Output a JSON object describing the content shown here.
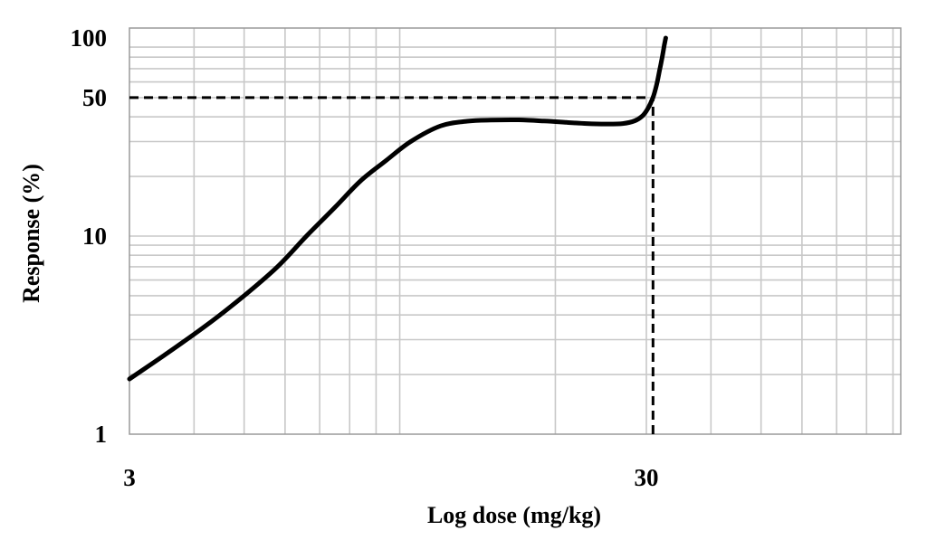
{
  "chart_data": {
    "type": "line",
    "title": "",
    "xlabel": "Log dose (mg/kg)",
    "ylabel": "Response (%)",
    "x_scale": "log",
    "y_scale": "log",
    "xlim": [
      3,
      300
    ],
    "ylim": [
      1,
      100
    ],
    "x_ticks": [
      3,
      30
    ],
    "x_tick_labels": [
      "3",
      "30"
    ],
    "y_ticks": [
      1,
      10,
      50,
      100
    ],
    "y_tick_labels": [
      "1",
      "10",
      "50",
      "100"
    ],
    "grid": true,
    "legend": "none",
    "colors": {
      "line": "#000000",
      "grid": "#c8c8c8",
      "axis": "#7a7a7a"
    },
    "series": [
      {
        "x": [
          3.0,
          3.5,
          4.2,
          5.0,
          5.8,
          6.6,
          7.5,
          8.4,
          9.4,
          10.5,
          12.0,
          13.5,
          15.0,
          17.0,
          19.0,
          21.0,
          23.0,
          25.0,
          27.0,
          28.5,
          29.5,
          30.2,
          30.9,
          31.4,
          31.8,
          32.2,
          32.5,
          32.7
        ],
        "y": [
          1.9,
          2.5,
          3.5,
          5.0,
          7.0,
          10.0,
          14.0,
          19.0,
          24.0,
          30.0,
          36.0,
          38.0,
          38.5,
          38.6,
          38.1,
          37.5,
          37.0,
          36.8,
          37.0,
          38.2,
          40.5,
          44.0,
          50.0,
          58.0,
          68.0,
          80.0,
          92.0,
          100.0
        ]
      }
    ],
    "reference_lines": [
      {
        "type": "horizontal",
        "y": 50,
        "x_from": 3,
        "x_to": 30.9,
        "style": "dashed"
      },
      {
        "type": "vertical",
        "x": 30.9,
        "y_from": 1,
        "y_to": 50,
        "style": "dashed"
      }
    ]
  }
}
